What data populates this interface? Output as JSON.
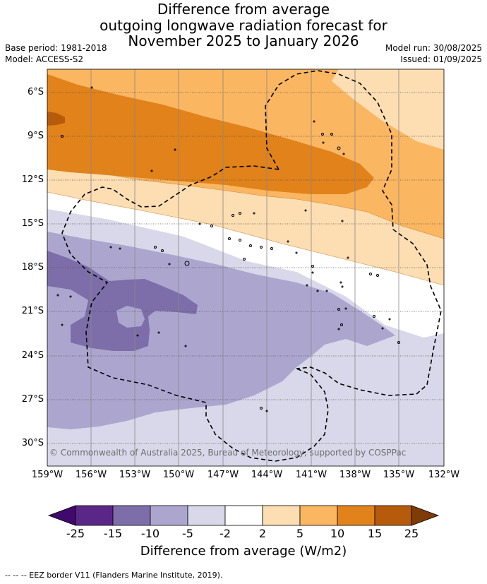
{
  "title_lines": [
    "Difference from average",
    "outgoing longwave radiation forecast for",
    "November 2025 to January 2026"
  ],
  "base_period": "Base period: 1981-2018",
  "model": "Model: ACCESS-S2",
  "model_run": "Model run: 30/08/2025",
  "issued": "Issued: 01/09/2025",
  "copyright": "© Commonwealth of Australia 2025, Bureau of Meteorology, supported by COSPPac",
  "footer": "--  --  -- EEZ border V11 (Flanders Marine Institute, 2019).",
  "map": {
    "lon_range": [
      -159,
      -132
    ],
    "lat_range": [
      -31.5,
      -4.5
    ],
    "lat_labels": [
      "6°S",
      "9°S",
      "12°S",
      "15°S",
      "18°S",
      "21°S",
      "24°S",
      "27°S",
      "30°S"
    ],
    "lon_labels": [
      "159°W",
      "156°W",
      "153°W",
      "150°W",
      "147°W",
      "144°W",
      "141°W",
      "138°W",
      "135°W",
      "132°W"
    ]
  },
  "colorbar": {
    "title": "Difference from average (W/m2)",
    "ticks": [
      "-25",
      "-15",
      "-10",
      "-5",
      "-2",
      "2",
      "5",
      "10",
      "15",
      "25"
    ],
    "colors": [
      "#5a2687",
      "#7d6ea9",
      "#aca6cf",
      "#d8d8ea",
      "#ffffff",
      "#fdddb2",
      "#fbb661",
      "#e1821a",
      "#b65a0c"
    ],
    "under_color": "#3f0a6b",
    "over_color": "#7f3b08"
  },
  "colors": {
    "orange_light": "#fdddb2",
    "orange": "#fbb661",
    "orange_dark": "#e1821a",
    "brown": "#b65a0c",
    "purple_light": "#d8d8ea",
    "purple": "#aca6cf",
    "purple_dark": "#7d6ea9"
  }
}
